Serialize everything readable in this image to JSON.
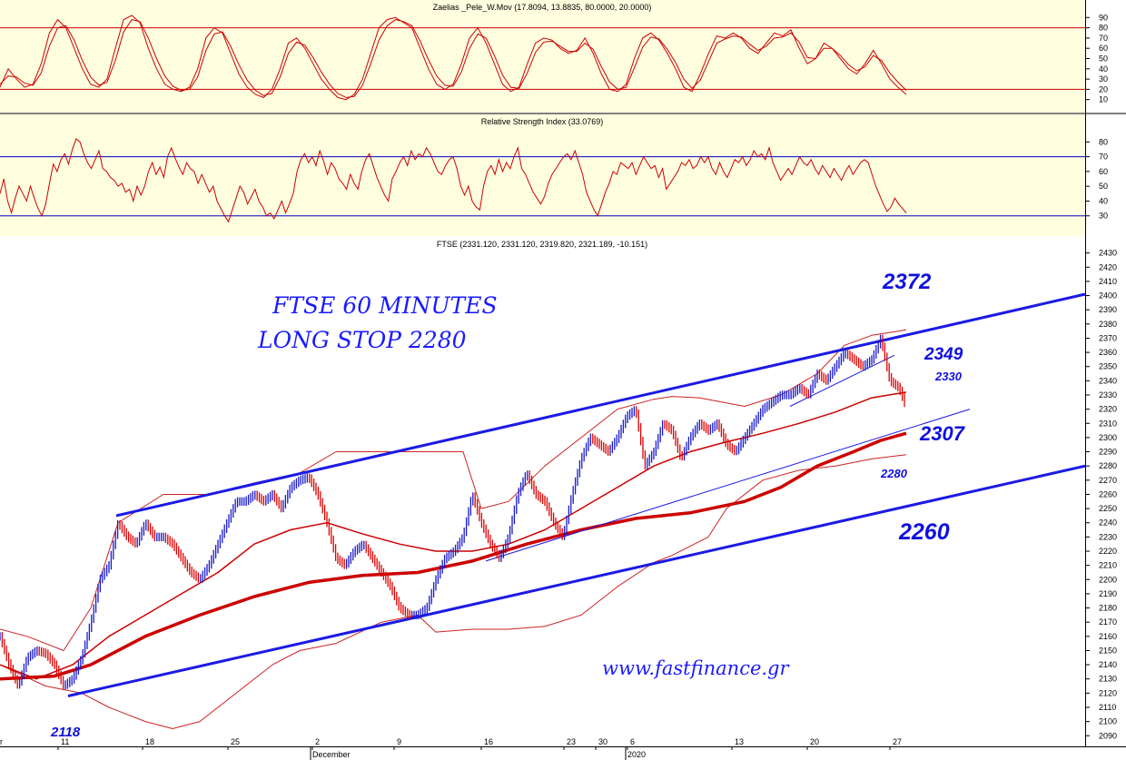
{
  "chart_data": [
    {
      "type": "line",
      "title": "Zaelias _Pele_W.Mov (17.8094, 13.8835, 80.0000, 20.0000)",
      "yticks": [
        10,
        20,
        30,
        40,
        50,
        60,
        70,
        80,
        90
      ],
      "ylim": [
        0,
        100
      ],
      "bands": [
        80,
        20
      ],
      "grid": false,
      "series": [
        {
          "values": [
            22,
            40,
            30,
            22,
            25,
            45,
            75,
            88,
            80,
            60,
            40,
            25,
            22,
            30,
            60,
            88,
            92,
            85,
            60,
            40,
            25,
            20,
            18,
            22,
            40,
            70,
            80,
            75,
            55,
            35,
            22,
            15,
            12,
            20,
            40,
            65,
            70,
            60,
            45,
            30,
            20,
            12,
            10,
            15,
            30,
            55,
            80,
            88,
            90,
            85,
            80,
            60,
            40,
            25,
            20,
            25,
            45,
            70,
            80,
            65,
            45,
            25,
            18,
            22,
            45,
            65,
            70,
            68,
            60,
            55,
            58,
            70,
            55,
            35,
            20,
            18,
            25,
            50,
            70,
            75,
            68,
            55,
            40,
            22,
            18,
            35,
            55,
            72,
            70,
            75,
            70,
            60,
            55,
            65,
            75,
            72,
            78,
            60,
            45,
            50,
            65,
            60,
            50,
            40,
            35,
            45,
            58,
            45,
            30,
            22,
            15
          ]
        },
        {
          "values": [
            25,
            33,
            32,
            26,
            24,
            36,
            62,
            80,
            82,
            68,
            48,
            32,
            24,
            27,
            48,
            76,
            88,
            86,
            70,
            50,
            33,
            23,
            19,
            20,
            32,
            58,
            74,
            76,
            62,
            44,
            29,
            19,
            14,
            16,
            32,
            55,
            66,
            63,
            51,
            37,
            25,
            16,
            12,
            13,
            24,
            45,
            68,
            82,
            88,
            86,
            82,
            67,
            49,
            33,
            24,
            23,
            37,
            60,
            74,
            70,
            53,
            34,
            22,
            21,
            36,
            56,
            66,
            67,
            62,
            57,
            57,
            65,
            59,
            42,
            27,
            20,
            22,
            41,
            61,
            71,
            69,
            59,
            46,
            30,
            21,
            29,
            47,
            65,
            69,
            72,
            71,
            64,
            58,
            62,
            70,
            71,
            75,
            66,
            51,
            50,
            60,
            60,
            53,
            44,
            38,
            42,
            53,
            48,
            36,
            27,
            19
          ]
        }
      ]
    },
    {
      "type": "line",
      "title": "Relative Strength Index (33.0769)",
      "yticks": [
        30,
        40,
        50,
        60,
        70,
        80
      ],
      "ylim": [
        20,
        90
      ],
      "bands": [
        70,
        30
      ],
      "grid": false,
      "series": [
        {
          "values": [
            45,
            55,
            40,
            32,
            42,
            50,
            45,
            40,
            50,
            42,
            35,
            30,
            38,
            52,
            65,
            60,
            68,
            72,
            65,
            75,
            82,
            80,
            72,
            66,
            62,
            68,
            74,
            62,
            60,
            56,
            54,
            50,
            52,
            46,
            48,
            40,
            50,
            44,
            50,
            60,
            66,
            58,
            63,
            56,
            70,
            76,
            69,
            63,
            58,
            66,
            62,
            60,
            52,
            58,
            52,
            46,
            50,
            40,
            35,
            30,
            26,
            34,
            42,
            50,
            46,
            38,
            43,
            48,
            40,
            36,
            30,
            32,
            28,
            34,
            40,
            32,
            38,
            45,
            60,
            68,
            72,
            66,
            70,
            64,
            74,
            67,
            58,
            66,
            62,
            55,
            52,
            48,
            58,
            52,
            48,
            60,
            68,
            72,
            64,
            56,
            50,
            44,
            40,
            55,
            60,
            66,
            70,
            64,
            74,
            68,
            72,
            70,
            76,
            72,
            66,
            60,
            58,
            64,
            68,
            70,
            62,
            50,
            44,
            50,
            40,
            36,
            34,
            50,
            60,
            64,
            58,
            68,
            60,
            66,
            62,
            70,
            76,
            62,
            58,
            52,
            46,
            42,
            38,
            43,
            52,
            58,
            62,
            66,
            70,
            72,
            68,
            74,
            66,
            58,
            46,
            40,
            34,
            30,
            38,
            46,
            52,
            60,
            58,
            66,
            64,
            62,
            66,
            58,
            64,
            70,
            66,
            62,
            64,
            56,
            62,
            48,
            52,
            56,
            60,
            66,
            64,
            68,
            62,
            64,
            70,
            66,
            70,
            62,
            58,
            66,
            60,
            56,
            62,
            68,
            66,
            70,
            64,
            68,
            74,
            70,
            72,
            68,
            76,
            66,
            60,
            54,
            58,
            62,
            58,
            64,
            70,
            66,
            64,
            68,
            62,
            58,
            64,
            60,
            56,
            62,
            58,
            54,
            60,
            64,
            58,
            62,
            66,
            68,
            66,
            58,
            50,
            44,
            38,
            33,
            36,
            42,
            38,
            35,
            32
          ]
        }
      ]
    },
    {
      "type": "line",
      "title": "FTSE (2331.120, 2331.120, 2319.820, 2321.189, -10.151)",
      "yticks": [
        2090,
        2100,
        2110,
        2120,
        2130,
        2140,
        2150,
        2160,
        2170,
        2180,
        2190,
        2200,
        2210,
        2220,
        2230,
        2240,
        2250,
        2260,
        2270,
        2280,
        2290,
        2300,
        2310,
        2320,
        2330,
        2340,
        2350,
        2360,
        2370,
        2380,
        2390,
        2400,
        2410,
        2420,
        2430
      ],
      "ylim": [
        2082.5,
        2440
      ],
      "xlim": [
        0,
        1195
      ],
      "xticks": [
        {
          "label": "11",
          "at": 64
        },
        {
          "label": "18",
          "at": 157
        },
        {
          "label": "25",
          "at": 251
        },
        {
          "label": "2",
          "at": 344
        },
        {
          "label": "9",
          "at": 434
        },
        {
          "label": "16",
          "at": 530
        },
        {
          "label": "23",
          "at": 621
        },
        {
          "label": "30",
          "at": 656
        },
        {
          "label": "6",
          "at": 691
        },
        {
          "label": "13",
          "at": 806
        },
        {
          "label": "20",
          "at": 889
        },
        {
          "label": "27",
          "at": 980
        }
      ],
      "xlabels_month": [
        {
          "label": "December",
          "at": 342
        },
        {
          "label": "2020",
          "at": 689
        }
      ],
      "x_left_fragment": "r",
      "price": {
        "x": [
          0,
          10,
          20,
          30,
          40,
          50,
          60,
          70,
          80,
          90,
          100,
          110,
          120,
          130,
          140,
          150,
          160,
          170,
          180,
          190,
          200,
          210,
          220,
          230,
          240,
          250,
          260,
          270,
          280,
          290,
          300,
          310,
          320,
          330,
          340,
          350,
          360,
          370,
          380,
          390,
          400,
          410,
          420,
          430,
          440,
          450,
          460,
          470,
          480,
          490,
          500,
          510,
          520,
          530,
          540,
          550,
          560,
          570,
          580,
          590,
          600,
          610,
          620,
          630,
          640,
          650,
          660,
          670,
          680,
          690,
          700,
          710,
          720,
          730,
          740,
          750,
          760,
          770,
          780,
          790,
          800,
          810,
          820,
          830,
          840,
          850,
          860,
          870,
          880,
          890,
          900,
          910,
          920,
          930,
          940,
          950,
          960,
          970,
          980,
          990,
          998
        ],
        "y": [
          2160,
          2140,
          2125,
          2145,
          2150,
          2148,
          2140,
          2125,
          2130,
          2145,
          2170,
          2200,
          2210,
          2240,
          2230,
          2225,
          2240,
          2230,
          2230,
          2225,
          2215,
          2205,
          2200,
          2210,
          2225,
          2240,
          2255,
          2255,
          2260,
          2255,
          2260,
          2250,
          2265,
          2270,
          2272,
          2260,
          2240,
          2215,
          2210,
          2220,
          2225,
          2215,
          2205,
          2195,
          2180,
          2175,
          2175,
          2180,
          2200,
          2215,
          2220,
          2230,
          2260,
          2240,
          2225,
          2215,
          2230,
          2260,
          2275,
          2260,
          2255,
          2240,
          2230,
          2260,
          2285,
          2300,
          2295,
          2290,
          2300,
          2315,
          2320,
          2280,
          2290,
          2310,
          2305,
          2285,
          2300,
          2310,
          2305,
          2310,
          2295,
          2290,
          2300,
          2310,
          2320,
          2325,
          2330,
          2330,
          2335,
          2330,
          2345,
          2340,
          2350,
          2360,
          2355,
          2350,
          2355,
          2370,
          2340,
          2335,
          2321
        ]
      },
      "bollinger_upper": {
        "x": [
          0,
          30,
          70,
          100,
          130,
          180,
          230,
          280,
          330,
          370,
          420,
          470,
          510,
          530,
          560,
          600,
          640,
          680,
          720,
          740,
          770,
          820,
          860,
          900,
          930,
          960,
          990,
          998
        ],
        "y": [
          2165,
          2160,
          2150,
          2180,
          2240,
          2260,
          2260,
          2268,
          2275,
          2290,
          2290,
          2290,
          2290,
          2250,
          2255,
          2280,
          2300,
          2320,
          2327,
          2329,
          2328,
          2322,
          2330,
          2345,
          2365,
          2372,
          2375,
          2376
        ]
      },
      "bollinger_lower": {
        "x": [
          0,
          50,
          90,
          120,
          160,
          190,
          220,
          260,
          300,
          330,
          370,
          420,
          460,
          480,
          520,
          560,
          600,
          640,
          680,
          720,
          740,
          780,
          800,
          840,
          880,
          920,
          960,
          998
        ],
        "y": [
          2140,
          2125,
          2120,
          2110,
          2100,
          2095,
          2100,
          2120,
          2140,
          2150,
          2155,
          2170,
          2175,
          2163,
          2165,
          2165,
          2167,
          2175,
          2195,
          2212,
          2217,
          2230,
          2250,
          2270,
          2277,
          2280,
          2285,
          2288
        ]
      },
      "ma_short": {
        "x": [
          0,
          40,
          80,
          120,
          160,
          200,
          240,
          280,
          320,
          360,
          400,
          440,
          480,
          520,
          560,
          600,
          640,
          680,
          720,
          760,
          800,
          840,
          880,
          920,
          960,
          998
        ],
        "y": [
          2140,
          2130,
          2140,
          2160,
          2175,
          2190,
          2205,
          2225,
          2235,
          2240,
          2232,
          2225,
          2220,
          2220,
          2225,
          2235,
          2250,
          2265,
          2280,
          2290,
          2297,
          2303,
          2310,
          2318,
          2328,
          2332
        ]
      },
      "ma_long": {
        "x": [
          0,
          60,
          100,
          160,
          220,
          280,
          340,
          400,
          460,
          520,
          580,
          640,
          700,
          760,
          820,
          860,
          900,
          940,
          970,
          998
        ],
        "y": [
          2130,
          2132,
          2140,
          2160,
          2175,
          2188,
          2198,
          2203,
          2205,
          2213,
          2225,
          2235,
          2243,
          2247,
          2255,
          2265,
          2280,
          2290,
          2298,
          2303
        ]
      },
      "trend_upper": {
        "x": [
          128,
          1195
        ],
        "y": [
          2245,
          2401
        ]
      },
      "trend_lower": {
        "x": [
          75,
          1195
        ],
        "y": [
          2118,
          2280
        ]
      },
      "trend_mid": {
        "x": [
          535,
          1068
        ],
        "y": [
          2213,
          2320
        ]
      },
      "trend_short": {
        "x": [
          870,
          985
        ],
        "y": [
          2322,
          2358
        ]
      },
      "annotations": {
        "title_line1": "FTSE 60 MINUTES",
        "title_line2": "LONG STOP  2280",
        "level_2372": "2372",
        "level_2349": "2349",
        "level_2330": "2330",
        "level_2307": "2307",
        "level_2280": "2280",
        "level_2260": "2260",
        "level_2118": "2118",
        "website": "www.fastfinance.gr"
      }
    }
  ],
  "colors": {
    "panel_bg": "#ffffe0",
    "indicator": "#cc0000",
    "band_zaelias": "#cc0000",
    "band_rsi": "#0000cc",
    "trend": "#1a1ae6",
    "price_up": "#1a1acc",
    "price_down": "#dd0000",
    "ma": "#cc0000",
    "bollinger": "#cc2222"
  }
}
